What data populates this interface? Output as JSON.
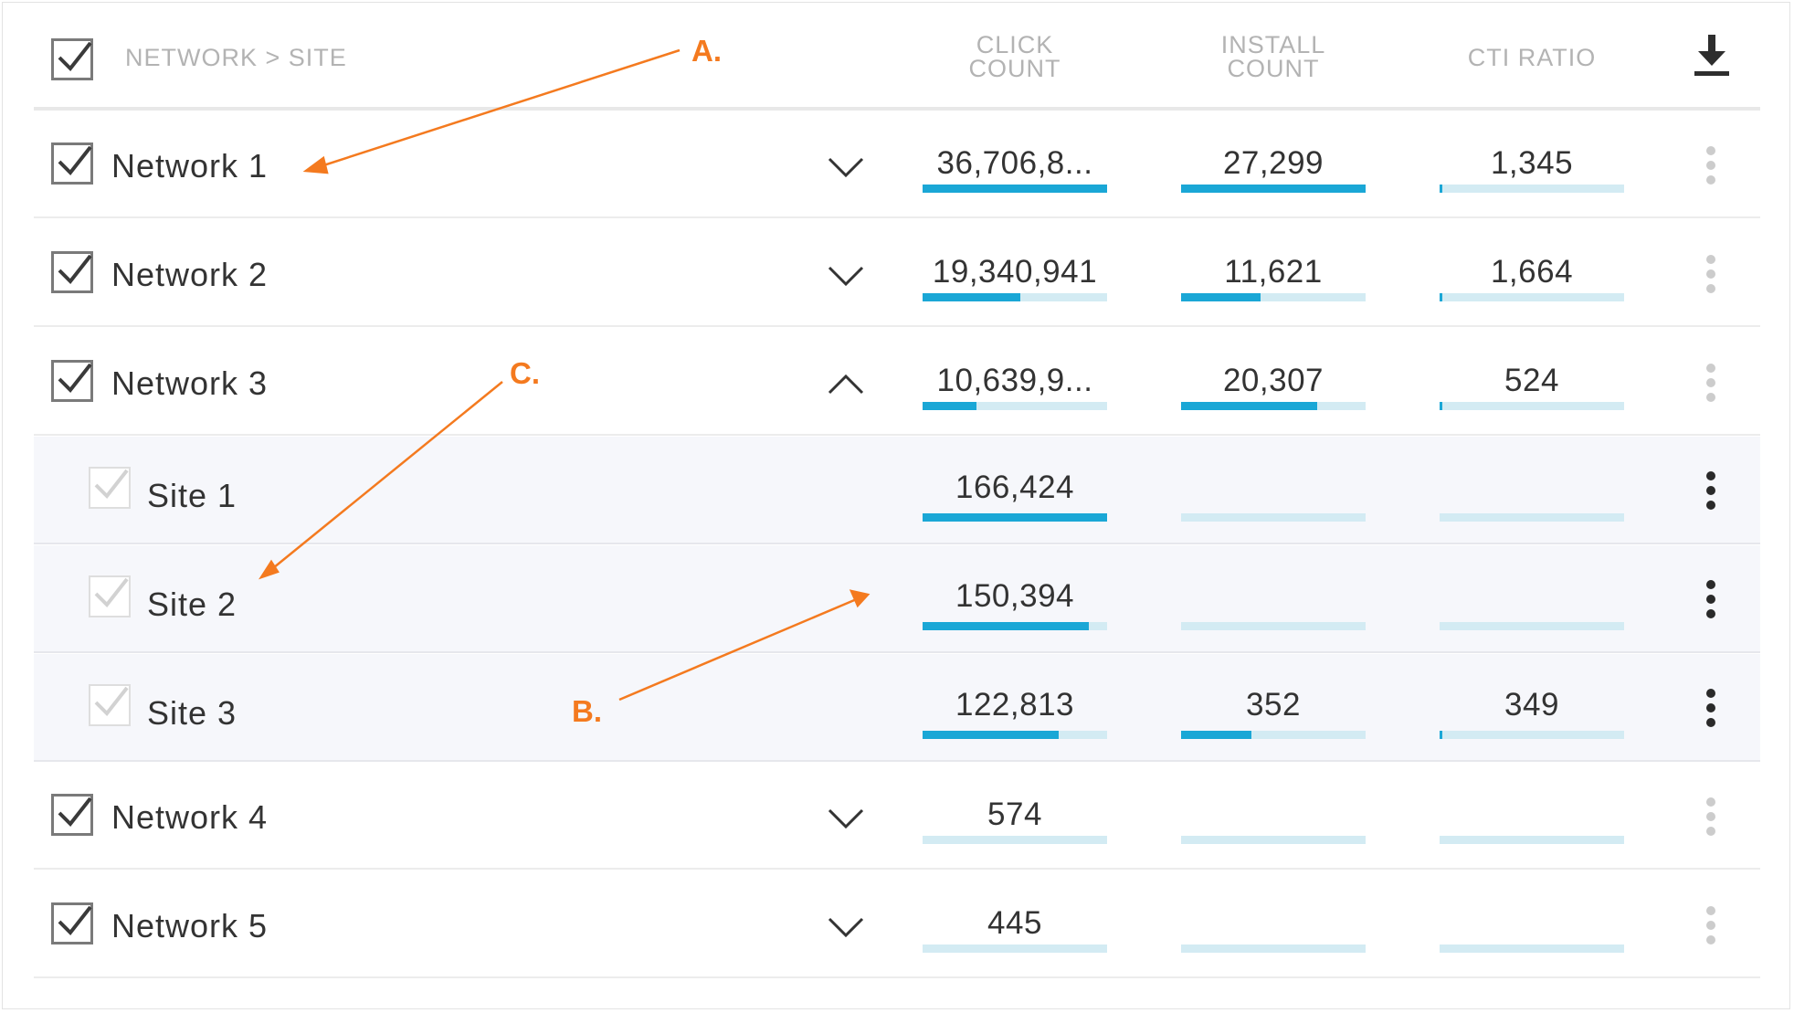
{
  "header": {
    "title": "NETWORK > SITE",
    "columns": [
      {
        "line1": "CLICK",
        "line2": "COUNT"
      },
      {
        "line1": "INSTALL",
        "line2": "COUNT"
      },
      {
        "line1": "CTI RATIO",
        "line2": ""
      }
    ],
    "download_icon": "download-icon"
  },
  "rows": [
    {
      "name": "Network 1",
      "type": "network",
      "chevron": "chevron-down-icon",
      "click": {
        "value": "36,706,8...",
        "fill": 1.0
      },
      "install": {
        "value": "27,299",
        "fill": 1.0
      },
      "cti": {
        "value": "1,345",
        "fill": 0.015
      }
    },
    {
      "name": "Network 2",
      "type": "network",
      "chevron": "chevron-down-icon",
      "click": {
        "value": "19,340,941",
        "fill": 0.53
      },
      "install": {
        "value": "11,621",
        "fill": 0.43
      },
      "cti": {
        "value": "1,664",
        "fill": 0.015
      }
    },
    {
      "name": "Network 3",
      "type": "network",
      "chevron": "chevron-up-icon",
      "click": {
        "value": "10,639,9...",
        "fill": 0.29
      },
      "install": {
        "value": "20,307",
        "fill": 0.74
      },
      "cti": {
        "value": "524",
        "fill": 0.006
      }
    },
    {
      "name": "Site 1",
      "type": "site",
      "click": {
        "value": "166,424",
        "fill": 1.0
      },
      "install": {
        "value": "",
        "fill": 0
      },
      "cti": {
        "value": "",
        "fill": 0
      }
    },
    {
      "name": "Site 2",
      "type": "site",
      "click": {
        "value": "150,394",
        "fill": 0.9
      },
      "install": {
        "value": "",
        "fill": 0
      },
      "cti": {
        "value": "",
        "fill": 0
      }
    },
    {
      "name": "Site 3",
      "type": "site",
      "click": {
        "value": "122,813",
        "fill": 0.74
      },
      "install": {
        "value": "352",
        "fill": 0.38
      },
      "cti": {
        "value": "349",
        "fill": 0.006
      }
    },
    {
      "name": "Network 4",
      "type": "network",
      "chevron": "chevron-down-icon",
      "click": {
        "value": "574",
        "fill": 0
      },
      "install": {
        "value": "",
        "fill": 0
      },
      "cti": {
        "value": "",
        "fill": 0
      }
    },
    {
      "name": "Network 5",
      "type": "network",
      "chevron": "chevron-down-icon",
      "click": {
        "value": "445",
        "fill": 0
      },
      "install": {
        "value": "",
        "fill": 0
      },
      "cti": {
        "value": "",
        "fill": 0
      }
    }
  ],
  "annotations": {
    "a": "A.",
    "b": "B.",
    "c": "C."
  },
  "colors": {
    "bar_fill": "#1aa7d6",
    "bar_track": "#d3ebf3",
    "annotation": "#f47a1f",
    "sub_row_bg": "#f6f7fb"
  }
}
